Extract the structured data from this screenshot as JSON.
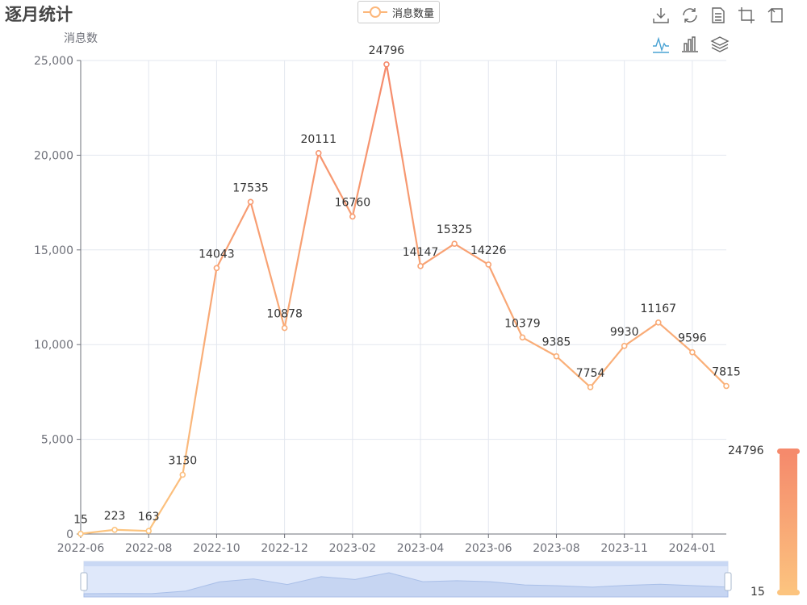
{
  "title": "逐月统计",
  "legend": {
    "label": "消息数量",
    "color": "#fcb77b"
  },
  "toolbox": {
    "items": [
      {
        "name": "save-as-image-icon"
      },
      {
        "name": "restore-icon"
      },
      {
        "name": "data-view-icon"
      },
      {
        "name": "zoom-icon"
      },
      {
        "name": "zoom-reset-icon"
      },
      {
        "name": "line-chart-icon",
        "active": true,
        "active_color": "#4aa3d4"
      },
      {
        "name": "bar-chart-icon"
      },
      {
        "name": "stack-icon"
      }
    ]
  },
  "visual_map": {
    "max_label": "24796",
    "min_label": "15",
    "colors": [
      "#f58a6c",
      "#fcc47f"
    ]
  },
  "chart_data": {
    "type": "line",
    "ylabel": "消息数",
    "ylim": [
      0,
      25000
    ],
    "yticks": [
      "0",
      "5,000",
      "10,000",
      "15,000",
      "20,000",
      "25,000"
    ],
    "x": [
      "2022-06",
      "2022-07",
      "2022-08",
      "2022-09",
      "2022-10",
      "2022-11",
      "2022-12",
      "2023-01",
      "2023-02",
      "2023-03",
      "2023-04",
      "2023-05",
      "2023-06",
      "2023-07",
      "2023-08",
      "2023-09",
      "2023-11",
      "2023-12",
      "2024-01",
      "2024-02"
    ],
    "xtick_labels": [
      "2022-06",
      "2022-08",
      "2022-10",
      "2022-12",
      "2023-02",
      "2023-04",
      "2023-06",
      "2023-08",
      "2023-11",
      "2024-01"
    ],
    "series": [
      {
        "name": "消息数量",
        "values": [
          15,
          223,
          163,
          3130,
          14043,
          17535,
          10878,
          20111,
          16760,
          24796,
          14147,
          15325,
          14226,
          10379,
          9385,
          7754,
          9930,
          11167,
          9596,
          7815
        ]
      }
    ],
    "grid": true,
    "legend_position": "top-center",
    "data_zoom": true
  }
}
